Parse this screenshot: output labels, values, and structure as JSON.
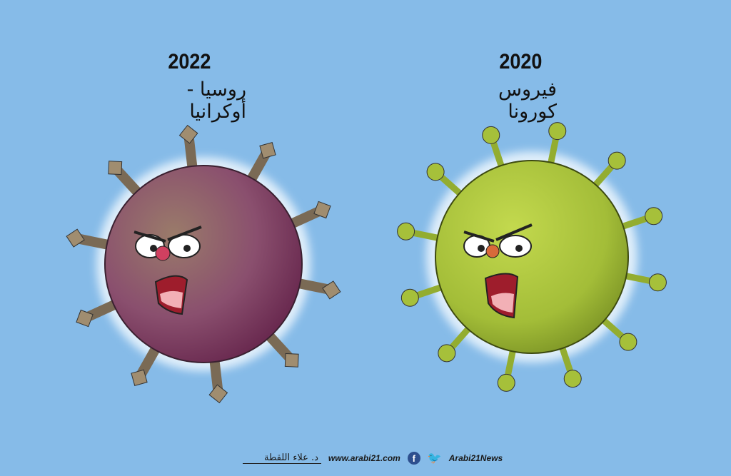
{
  "left_panel": {
    "year": "2022",
    "caption": "روسيا - أوكرانيا",
    "virus_color": "#8a4a6a",
    "spike": "missile"
  },
  "right_panel": {
    "year": "2020",
    "caption": "فيروس كورونا",
    "virus_color": "#a6c03a",
    "spike": "protein-spike"
  },
  "footer": {
    "signature": "د. علاء اللقطة",
    "website": "www.arabi21.com",
    "social_handle": "Arabi21News",
    "icons": [
      "facebook-icon",
      "twitter-icon"
    ]
  },
  "colors": {
    "background": "#86bbe8",
    "text": "#111111"
  }
}
